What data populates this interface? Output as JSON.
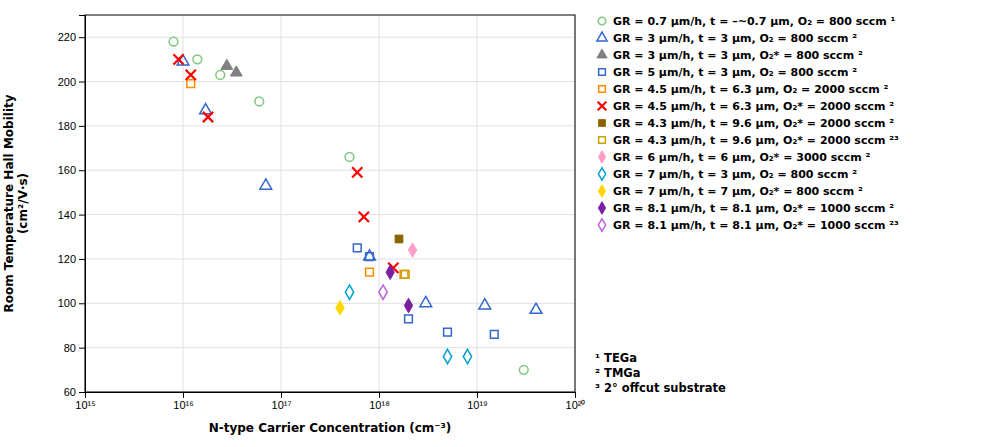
{
  "chart_data": {
    "type": "scatter",
    "xlabel": "N-type Carrier Concentration (cm⁻³)",
    "ylabel": "Room Temperature Hall Mobility\n(cm²/V·s)",
    "log": "x",
    "xlim": [
      1000000000000000.0,
      1e+20
    ],
    "xticks": [
      {
        "value": 1000000000000000.0,
        "label": "10¹⁵"
      },
      {
        "value": 1e+16,
        "label": "10¹⁶"
      },
      {
        "value": 1e+17,
        "label": "10¹⁷"
      },
      {
        "value": 1e+18,
        "label": "10¹⁸"
      },
      {
        "value": 1e+19,
        "label": "10¹⁹"
      },
      {
        "value": 1e+20,
        "label": "10²⁰"
      }
    ],
    "ylim": [
      60,
      230
    ],
    "yticks": [
      60,
      80,
      100,
      120,
      140,
      160,
      180,
      200,
      220
    ],
    "grid": true,
    "legend": "right",
    "annotations": [
      "¹ TEGa",
      "² TMGa",
      "³ 2° offcut substrate"
    ],
    "series": [
      {
        "name": "GR = 0.7 μm/h, t = –~0.7 μm, O₂ = 800 sccm  ¹",
        "color": "#7DC87D",
        "marker": "circle-open",
        "x": [
          8000000000000000.0,
          1.4e+16,
          2.4e+16,
          6e+16,
          5e+17,
          3e+19
        ],
        "values": [
          218,
          210,
          203,
          191,
          166,
          70
        ]
      },
      {
        "name": "GR = 3 μm/h, t = 3 μm, O₂ = 800 sccm  ²",
        "color": "#3366CC",
        "marker": "triangle-open",
        "x": [
          1e+16,
          1.7e+16,
          7e+16,
          8e+17,
          3e+18,
          1.2e+19,
          4e+19
        ],
        "values": [
          209,
          187,
          153,
          121,
          100,
          99,
          97
        ]
      },
      {
        "name": "GR = 3 μm/h, t = 3 μm, O₂* = 800 sccm  ²",
        "color": "#808080",
        "marker": "triangle",
        "x": [
          2.8e+16,
          3.5e+16
        ],
        "values": [
          207,
          204
        ]
      },
      {
        "name": "GR = 5 μm/h, t = 3 μm, O₂ = 800 sccm  ²",
        "color": "#3366CC",
        "marker": "square-open",
        "x": [
          6e+17,
          8e+17,
          2e+18,
          5e+18,
          1.5e+19
        ],
        "values": [
          125,
          121,
          93,
          87,
          86
        ]
      },
      {
        "name": "GR = 4.5 μm/h, t = 6.3 μm, O₂ = 2000 sccm  ²",
        "color": "#FF8C00",
        "marker": "square-open",
        "x": [
          1.2e+16,
          8e+17,
          1.8e+18
        ],
        "values": [
          199,
          114,
          113
        ]
      },
      {
        "name": "GR = 4.5 μm/h, t = 6.3 μm, O₂* = 2000 sccm  ²",
        "color": "#FF0000",
        "marker": "x",
        "x": [
          9000000000000000.0,
          1.2e+16,
          1.8e+16,
          6e+17,
          7e+17,
          1.4e+18
        ],
        "values": [
          210,
          203,
          184,
          159,
          139,
          116
        ]
      },
      {
        "name": "GR = 4.3 μm/h, t = 9.6 μm, O₂* = 2000 sccm  ²",
        "color": "#8B6400",
        "marker": "square",
        "x": [
          1.6e+18
        ],
        "values": [
          129
        ]
      },
      {
        "name": "GR = 4.3 μm/h, t = 9.6 μm, O₂* = 2000 sccm  ²³",
        "color": "#C8A400",
        "marker": "square-open",
        "x": [
          1.85e+18
        ],
        "values": [
          113
        ]
      },
      {
        "name": "GR = 6 μm/h, t = 6 μm, O₂* = 3000 sccm  ²",
        "color": "#FF9EC8",
        "marker": "diamond",
        "x": [
          2.2e+18
        ],
        "values": [
          124
        ]
      },
      {
        "name": "GR = 7 μm/h, t = 3 μm, O₂ = 800 sccm  ²",
        "color": "#00A0D0",
        "marker": "diamond-open",
        "x": [
          5e+17,
          5e+18,
          8e+18
        ],
        "values": [
          105,
          76,
          76
        ]
      },
      {
        "name": "GR = 7 μm/h, t = 7 μm, O₂* = 800 sccm  ²",
        "color": "#FFD700",
        "marker": "diamond",
        "x": [
          4e+17
        ],
        "values": [
          98
        ]
      },
      {
        "name": "GR = 8.1 μm/h, t = 8.1 μm, O₂* = 1000 sccm  ²",
        "color": "#7B1FA2",
        "marker": "diamond",
        "x": [
          1.3e+18,
          2e+18
        ],
        "values": [
          114,
          99
        ]
      },
      {
        "name": "GR = 8.1 μm/h, t = 8.1 μm, O₂* = 1000 sccm  ²³",
        "color": "#C060E0",
        "marker": "diamond-open",
        "x": [
          1.1e+18
        ],
        "values": [
          105
        ]
      }
    ]
  }
}
